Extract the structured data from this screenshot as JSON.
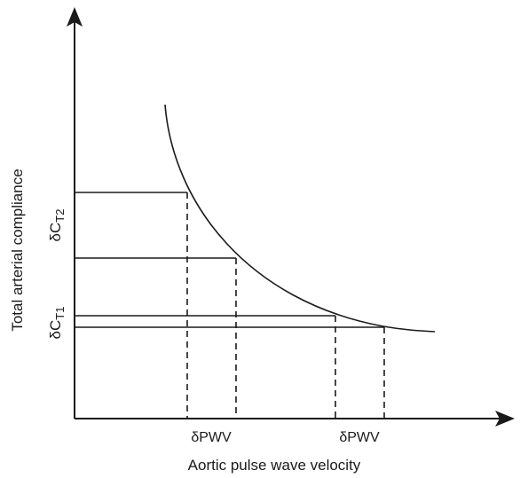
{
  "diagram": {
    "x_axis_label": "Aortic pulse wave velocity",
    "y_axis_label": "Total arterial compliance",
    "delta_labels_x": [
      "δPWV",
      "δPWV"
    ],
    "delta_labels_y": {
      "upper": {
        "base": "δC",
        "sub": "T2"
      },
      "lower": {
        "base": "δC",
        "sub": "T1"
      }
    },
    "colors": {
      "line": "#1a1a1a",
      "background": "#ffffff"
    }
  }
}
